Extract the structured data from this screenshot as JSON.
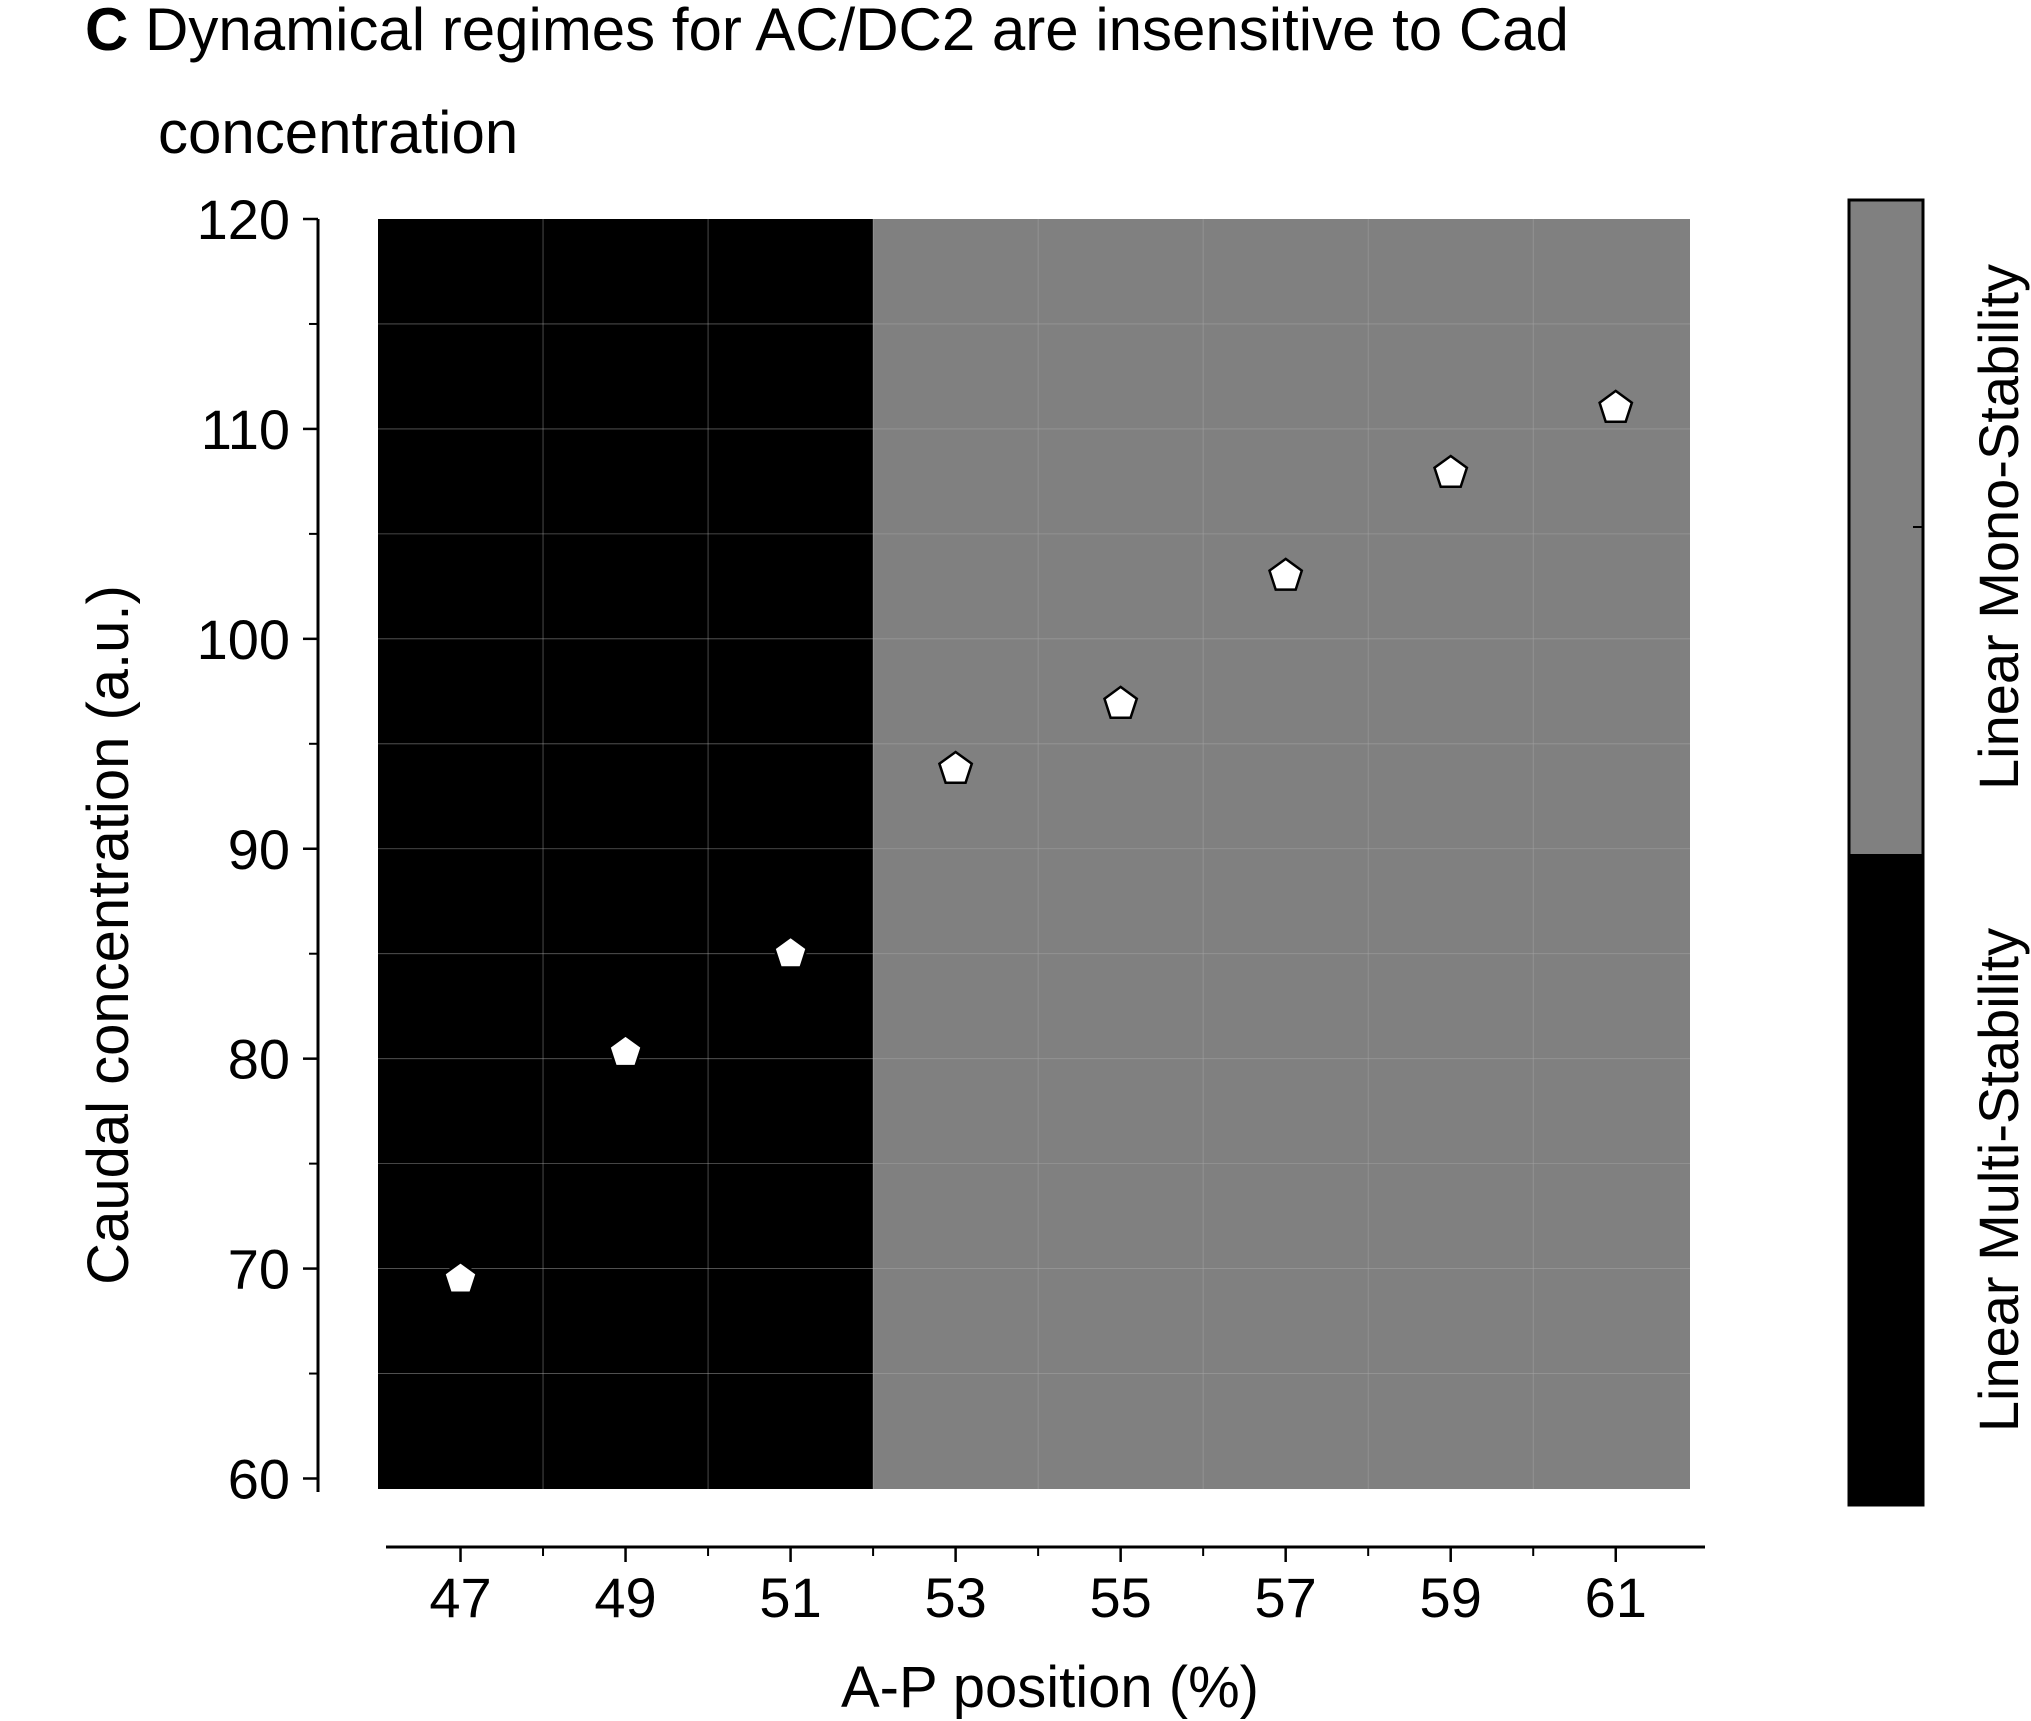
{
  "chart_data": {
    "type": "scatter",
    "panel_letter": "C",
    "title_line1": "Dynamical regimes for AC/DC2 are insensitive to Cad",
    "title_line2": "concentration",
    "xlabel": "A-P position (%)",
    "ylabel": "Caudal  concentration (a.u.)",
    "xlim": [
      46,
      61.9
    ],
    "ylim": [
      59.5,
      120
    ],
    "xticks": [
      47,
      49,
      51,
      53,
      55,
      57,
      59,
      61
    ],
    "yticks": [
      60,
      70,
      80,
      90,
      100,
      110,
      120
    ],
    "grid": true,
    "regions": [
      {
        "label": "Linear Multi-Stability",
        "x_from": 46,
        "x_to": 52,
        "color": "#000000"
      },
      {
        "label": "Linear Mono-Stability",
        "x_from": 52,
        "x_to": 61.9,
        "color": "#808080"
      }
    ],
    "series": [
      {
        "marker": "pentagon",
        "marker_fill": "#ffffff",
        "x": [
          47,
          49,
          51,
          53,
          55,
          57,
          59,
          61
        ],
        "y": [
          69.5,
          80.3,
          85.0,
          93.8,
          96.9,
          103.0,
          107.9,
          111.0
        ]
      }
    ],
    "colorbar": {
      "entries": [
        {
          "label": "Linear Multi-Stability",
          "color": "#000000"
        },
        {
          "label": "Linear Mono-Stability",
          "color": "#808080"
        }
      ]
    }
  }
}
